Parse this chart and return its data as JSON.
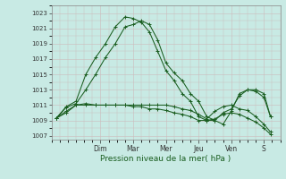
{
  "xlabel": "Pression niveau de la mer( hPa )",
  "bg_color": "#c8eae4",
  "grid_color": "#ccbbbb",
  "line_color": "#1a5e20",
  "ylim": [
    1006.5,
    1024.0
  ],
  "yticks": [
    1007,
    1009,
    1011,
    1013,
    1015,
    1017,
    1019,
    1021,
    1023
  ],
  "day_labels": [
    "Dim",
    "Mar",
    "Mer",
    "Jeu",
    "Ven",
    "S"
  ],
  "day_positions": [
    3.0,
    5.0,
    7.0,
    9.0,
    11.0,
    13.0
  ],
  "xlim": [
    0,
    14.0
  ],
  "lines": {
    "line1": {
      "x": [
        0.3,
        0.9,
        1.5,
        2.1,
        2.7,
        3.3,
        3.9,
        4.5,
        5.0,
        5.5,
        6.0,
        6.5,
        7.0,
        7.5,
        8.0,
        8.5,
        9.0,
        9.5,
        10.0,
        10.5,
        11.0,
        11.5,
        12.0,
        12.5,
        13.0,
        13.4
      ],
      "y": [
        1009.3,
        1010.7,
        1011.2,
        1013.0,
        1015.0,
        1017.2,
        1019.0,
        1021.2,
        1021.5,
        1022.0,
        1021.5,
        1019.5,
        1016.5,
        1015.2,
        1014.2,
        1012.5,
        1011.5,
        1009.5,
        1009.0,
        1008.5,
        1010.2,
        1012.5,
        1013.0,
        1012.8,
        1012.0,
        1009.5
      ]
    },
    "line2": {
      "x": [
        0.3,
        0.9,
        1.5,
        2.1,
        2.7,
        3.3,
        3.9,
        4.5,
        5.0,
        5.5,
        6.0,
        6.5,
        7.0,
        7.5,
        8.0,
        8.5,
        9.0,
        9.5,
        10.0,
        10.5,
        11.0,
        11.5,
        12.0,
        12.5,
        13.0,
        13.4
      ],
      "y": [
        1009.3,
        1010.8,
        1011.5,
        1015.0,
        1017.2,
        1019.0,
        1021.2,
        1022.5,
        1022.3,
        1021.8,
        1020.5,
        1018.0,
        1015.5,
        1014.2,
        1012.5,
        1011.5,
        1009.5,
        1009.0,
        1009.0,
        1010.0,
        1010.5,
        1012.2,
        1013.0,
        1013.0,
        1012.5,
        1009.5
      ]
    },
    "line3": {
      "x": [
        0.3,
        0.9,
        1.5,
        2.1,
        2.7,
        3.3,
        3.9,
        4.5,
        5.0,
        5.5,
        6.0,
        6.5,
        7.0,
        7.5,
        8.0,
        8.5,
        9.0,
        9.5,
        10.0,
        10.5,
        11.0,
        11.5,
        12.0,
        12.5,
        13.0,
        13.4
      ],
      "y": [
        1009.3,
        1010.2,
        1011.0,
        1011.2,
        1011.0,
        1011.0,
        1011.0,
        1011.0,
        1011.0,
        1011.0,
        1011.0,
        1011.0,
        1011.0,
        1010.8,
        1010.5,
        1010.3,
        1009.8,
        1009.2,
        1010.2,
        1010.8,
        1011.0,
        1010.5,
        1010.3,
        1009.5,
        1008.5,
        1007.5
      ]
    },
    "line4": {
      "x": [
        0.3,
        0.9,
        1.5,
        2.1,
        2.7,
        3.3,
        3.9,
        4.5,
        5.0,
        5.5,
        6.0,
        6.5,
        7.0,
        7.5,
        8.0,
        8.5,
        9.0,
        9.5,
        10.0,
        10.5,
        11.0,
        11.5,
        12.0,
        12.5,
        13.0,
        13.4
      ],
      "y": [
        1009.3,
        1010.0,
        1011.0,
        1011.0,
        1011.0,
        1011.0,
        1011.0,
        1011.0,
        1010.8,
        1010.8,
        1010.5,
        1010.5,
        1010.3,
        1010.0,
        1009.8,
        1009.5,
        1009.0,
        1009.0,
        1009.2,
        1009.8,
        1010.0,
        1009.8,
        1009.3,
        1008.8,
        1008.0,
        1007.2
      ]
    }
  }
}
